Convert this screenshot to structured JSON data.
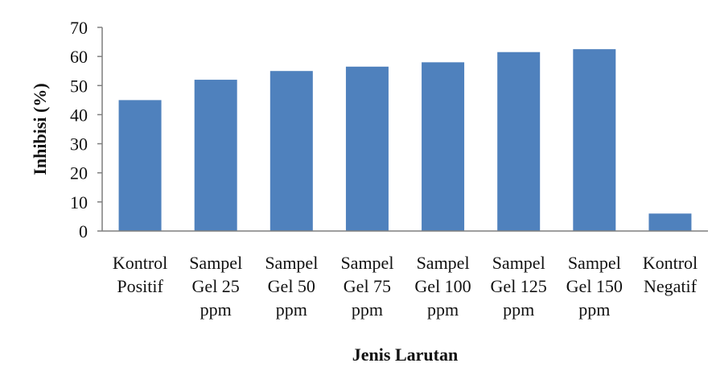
{
  "chart_data": {
    "type": "bar",
    "categories": [
      [
        "Kontrol",
        "Positif"
      ],
      [
        "Sampel",
        "Gel 25",
        "ppm"
      ],
      [
        "Sampel",
        "Gel 50",
        "ppm"
      ],
      [
        "Sampel",
        "Gel 75",
        "ppm"
      ],
      [
        "Sampel",
        "Gel 100",
        "ppm"
      ],
      [
        "Sampel",
        "Gel 125",
        "ppm"
      ],
      [
        "Sampel",
        "Gel 150",
        "ppm"
      ],
      [
        "Kontrol",
        "Negatif"
      ]
    ],
    "values": [
      45,
      52,
      55,
      56.5,
      58,
      61.5,
      62.5,
      6
    ],
    "xlabel": "Jenis Larutan",
    "ylabel": "Inhibisi  (%)",
    "ylim": [
      0,
      70
    ],
    "yticks": [
      0,
      10,
      20,
      30,
      40,
      50,
      60,
      70
    ],
    "grid": false,
    "colors": {
      "bar": "#4f81bd",
      "axis": "#7f7f7f"
    }
  }
}
